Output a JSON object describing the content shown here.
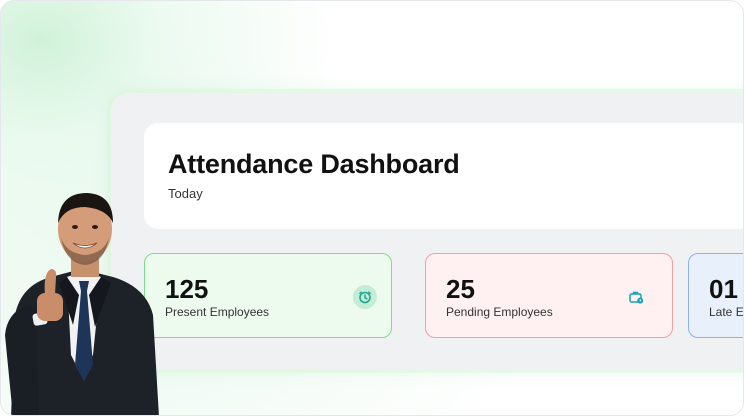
{
  "header": {
    "title": "Attendance Dashboard",
    "subtitle": "Today"
  },
  "stats": [
    {
      "value": "125",
      "label": "Present Employees",
      "icon": "clock-icon",
      "color": "#1fa891"
    },
    {
      "value": "25",
      "label": "Pending Employees",
      "icon": "briefcase-icon",
      "color": "#13a3b5"
    },
    {
      "value": "01",
      "label": "Late Em"
    }
  ],
  "colors": {
    "present_bg": "#edfbef",
    "present_border": "#7fdc8f",
    "pending_bg": "#fff0f1",
    "pending_border": "#f0a0a6",
    "late_bg": "#e8f0fb",
    "late_border": "#8fb1e3"
  }
}
